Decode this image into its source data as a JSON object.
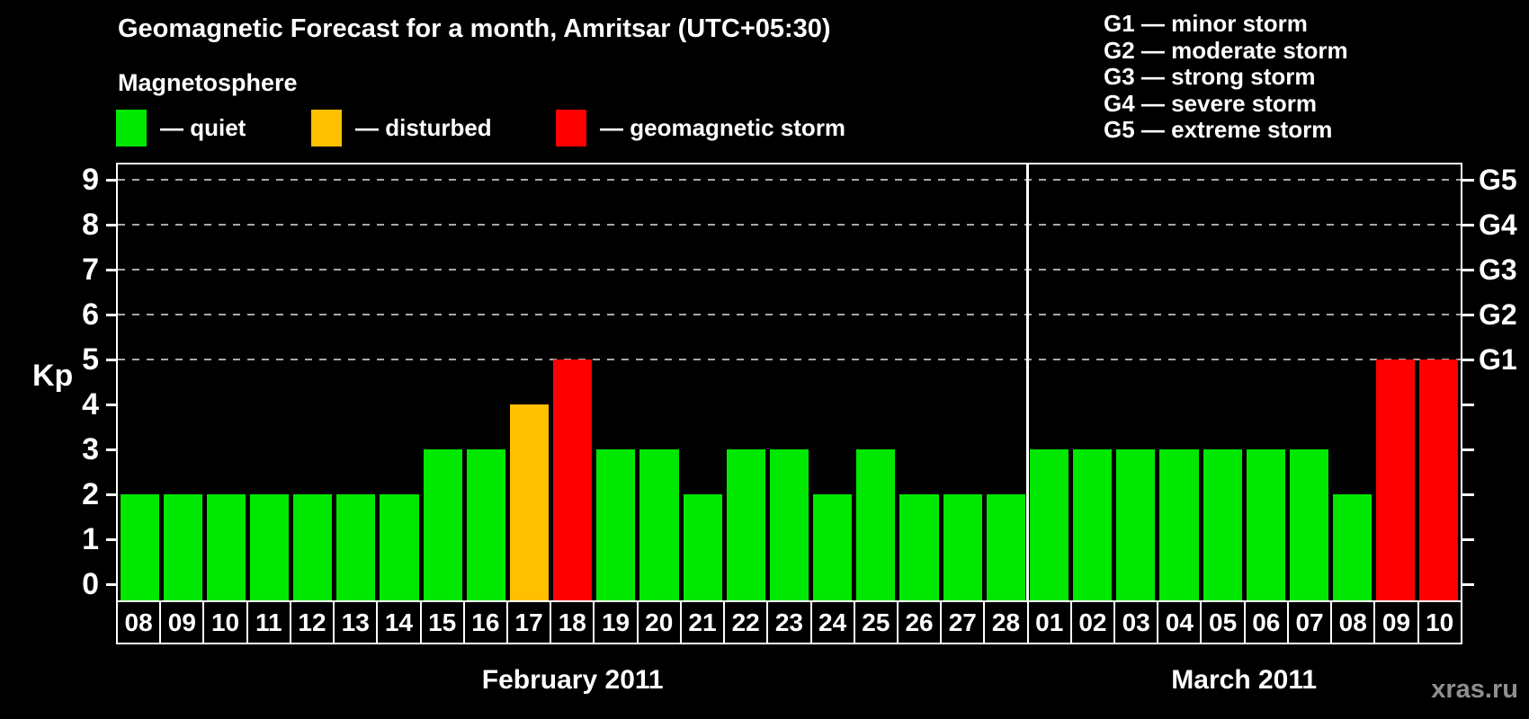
{
  "header": {
    "title": "Geomagnetic Forecast for a month, Amritsar (UTC+05:30)",
    "legend_title": "Magnetosphere",
    "legend": [
      {
        "state": "quiet",
        "label": "— quiet",
        "color": "#00e800"
      },
      {
        "state": "disturbed",
        "label": "— disturbed",
        "color": "#ffc000"
      },
      {
        "state": "storm",
        "label": "— geomagnetic storm",
        "color": "#ff0000"
      }
    ],
    "g_scale_legend": [
      "G1 — minor storm",
      "G2 — moderate storm",
      "G3 — strong storm",
      "G4 — severe storm",
      "G5 — extreme storm"
    ]
  },
  "chart": {
    "y_axis_label": "Kp",
    "y_ticks": [
      0,
      1,
      2,
      3,
      4,
      5,
      6,
      7,
      8,
      9
    ],
    "grid_levels": [
      5,
      6,
      7,
      8,
      9
    ],
    "g_ticks": [
      {
        "label": "G1",
        "kp": 5
      },
      {
        "label": "G2",
        "kp": 6
      },
      {
        "label": "G3",
        "kp": 7
      },
      {
        "label": "G4",
        "kp": 8
      },
      {
        "label": "G5",
        "kp": 9
      }
    ],
    "months": [
      {
        "label": "February 2011",
        "days": [
          {
            "day": "08",
            "kp": 2,
            "state": "quiet"
          },
          {
            "day": "09",
            "kp": 2,
            "state": "quiet"
          },
          {
            "day": "10",
            "kp": 2,
            "state": "quiet"
          },
          {
            "day": "11",
            "kp": 2,
            "state": "quiet"
          },
          {
            "day": "12",
            "kp": 2,
            "state": "quiet"
          },
          {
            "day": "13",
            "kp": 2,
            "state": "quiet"
          },
          {
            "day": "14",
            "kp": 2,
            "state": "quiet"
          },
          {
            "day": "15",
            "kp": 3,
            "state": "quiet"
          },
          {
            "day": "16",
            "kp": 3,
            "state": "quiet"
          },
          {
            "day": "17",
            "kp": 4,
            "state": "disturbed"
          },
          {
            "day": "18",
            "kp": 5,
            "state": "storm"
          },
          {
            "day": "19",
            "kp": 3,
            "state": "quiet"
          },
          {
            "day": "20",
            "kp": 3,
            "state": "quiet"
          },
          {
            "day": "21",
            "kp": 2,
            "state": "quiet"
          },
          {
            "day": "22",
            "kp": 3,
            "state": "quiet"
          },
          {
            "day": "23",
            "kp": 3,
            "state": "quiet"
          },
          {
            "day": "24",
            "kp": 2,
            "state": "quiet"
          },
          {
            "day": "25",
            "kp": 3,
            "state": "quiet"
          },
          {
            "day": "26",
            "kp": 2,
            "state": "quiet"
          },
          {
            "day": "27",
            "kp": 2,
            "state": "quiet"
          },
          {
            "day": "28",
            "kp": 2,
            "state": "quiet"
          }
        ]
      },
      {
        "label": "March 2011",
        "days": [
          {
            "day": "01",
            "kp": 3,
            "state": "quiet"
          },
          {
            "day": "02",
            "kp": 3,
            "state": "quiet"
          },
          {
            "day": "03",
            "kp": 3,
            "state": "quiet"
          },
          {
            "day": "04",
            "kp": 3,
            "state": "quiet"
          },
          {
            "day": "05",
            "kp": 3,
            "state": "quiet"
          },
          {
            "day": "06",
            "kp": 3,
            "state": "quiet"
          },
          {
            "day": "07",
            "kp": 3,
            "state": "quiet"
          },
          {
            "day": "08",
            "kp": 2,
            "state": "quiet"
          },
          {
            "day": "09",
            "kp": 5,
            "state": "storm"
          },
          {
            "day": "10",
            "kp": 5,
            "state": "storm"
          }
        ]
      }
    ],
    "watermark": "xras.ru"
  },
  "chart_data": {
    "type": "bar",
    "title": "Geomagnetic Forecast for a month, Amritsar (UTC+05:30)",
    "xlabel": "",
    "ylabel": "Kp",
    "ylim": [
      0,
      9
    ],
    "grid": "dashed horizontal lines at Kp 5,6,7,8,9",
    "right_axis_labels": {
      "G1": 5,
      "G2": 6,
      "G3": 7,
      "G4": 8,
      "G5": 9
    },
    "categories": [
      "Feb 08",
      "Feb 09",
      "Feb 10",
      "Feb 11",
      "Feb 12",
      "Feb 13",
      "Feb 14",
      "Feb 15",
      "Feb 16",
      "Feb 17",
      "Feb 18",
      "Feb 19",
      "Feb 20",
      "Feb 21",
      "Feb 22",
      "Feb 23",
      "Feb 24",
      "Feb 25",
      "Feb 26",
      "Feb 27",
      "Feb 28",
      "Mar 01",
      "Mar 02",
      "Mar 03",
      "Mar 04",
      "Mar 05",
      "Mar 06",
      "Mar 07",
      "Mar 08",
      "Mar 09",
      "Mar 10"
    ],
    "values": [
      2,
      2,
      2,
      2,
      2,
      2,
      2,
      3,
      3,
      4,
      5,
      3,
      3,
      2,
      3,
      3,
      2,
      3,
      2,
      2,
      2,
      3,
      3,
      3,
      3,
      3,
      3,
      3,
      2,
      5,
      5
    ],
    "states": [
      "quiet",
      "quiet",
      "quiet",
      "quiet",
      "quiet",
      "quiet",
      "quiet",
      "quiet",
      "quiet",
      "disturbed",
      "storm",
      "quiet",
      "quiet",
      "quiet",
      "quiet",
      "quiet",
      "quiet",
      "quiet",
      "quiet",
      "quiet",
      "quiet",
      "quiet",
      "quiet",
      "quiet",
      "quiet",
      "quiet",
      "quiet",
      "quiet",
      "quiet",
      "storm",
      "storm"
    ],
    "colors": {
      "quiet": "#00e800",
      "disturbed": "#ffc000",
      "storm": "#ff0000"
    },
    "legend_position": "top-left"
  }
}
